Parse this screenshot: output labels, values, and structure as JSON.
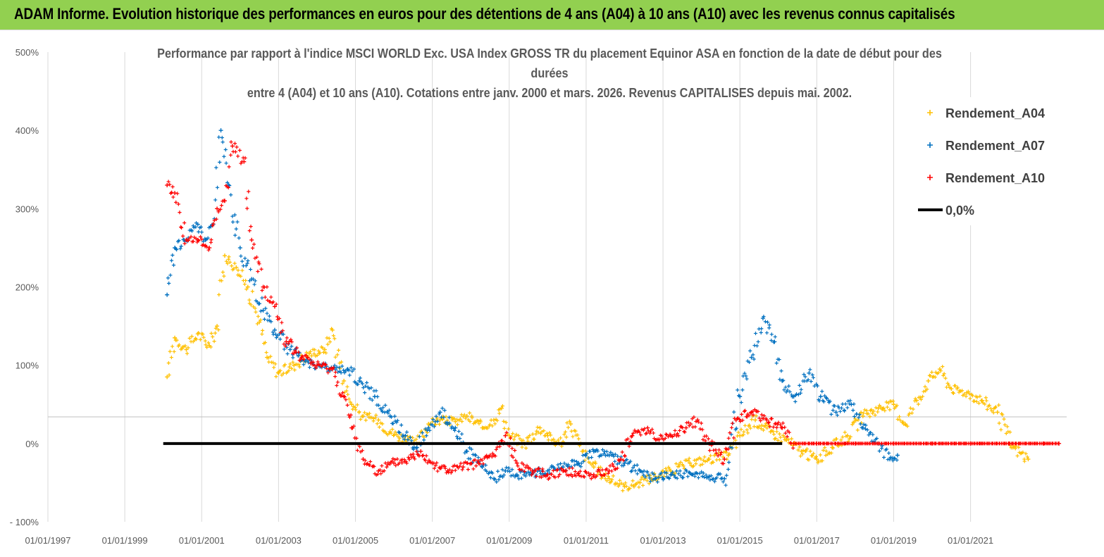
{
  "banner": {
    "text": "ADAM Informe. Evolution historique des performances en euros pour des détentions de 4 ans (A04) à 10 ans (A10) avec les revenus connus capitalisés",
    "color": "#92d050"
  },
  "chart_data": {
    "type": "scatter",
    "title_lines": [
      "Performance par rapport à l'indice MSCI WORLD Exc. USA Index GROSS TR  du placement Equinor ASA en fonction de la date de début pour des",
      "durées",
      "entre 4 (A04) et 10 ans (A10). Cotations entre janv. 2000 et mars. 2026. Revenus CAPITALISES depuis mai. 2002."
    ],
    "xlabel": "",
    "ylabel": "",
    "x_ticks": [
      "01/01/1997",
      "01/01/1999",
      "01/01/2001",
      "01/01/2003",
      "01/01/2005",
      "01/01/2007",
      "01/01/2009",
      "01/01/2011",
      "01/01/2013",
      "01/01/2015",
      "01/01/2017",
      "01/01/2019",
      "01/01/2021"
    ],
    "xlim": [
      1997.0,
      2023.5
    ],
    "y_ticks": [
      "500%",
      "400%",
      "300%",
      "200%",
      "100%",
      "0%",
      "- 100%"
    ],
    "y_tick_values": [
      500,
      400,
      300,
      200,
      100,
      0,
      -100
    ],
    "ylim": [
      -100,
      500
    ],
    "legend_position": "top-right",
    "series": [
      {
        "name": "Rendement_A04",
        "color": "#ffc000",
        "marker": "+",
        "points": [
          [
            2000.1,
            85
          ],
          [
            2000.3,
            135
          ],
          [
            2000.6,
            120
          ],
          [
            2000.9,
            140
          ],
          [
            2001.2,
            125
          ],
          [
            2001.4,
            150
          ],
          [
            2001.6,
            240
          ],
          [
            2001.9,
            225
          ],
          [
            2002.2,
            200
          ],
          [
            2002.5,
            155
          ],
          [
            2002.7,
            110
          ],
          [
            2003.0,
            90
          ],
          [
            2003.4,
            100
          ],
          [
            2003.8,
            115
          ],
          [
            2004.2,
            120
          ],
          [
            2004.4,
            145
          ],
          [
            2004.7,
            80
          ],
          [
            2004.9,
            50
          ],
          [
            2005.2,
            35
          ],
          [
            2005.6,
            30
          ],
          [
            2005.9,
            15
          ],
          [
            2006.3,
            5
          ],
          [
            2006.6,
            0
          ],
          [
            2006.9,
            25
          ],
          [
            2007.2,
            30
          ],
          [
            2007.6,
            28
          ],
          [
            2007.9,
            35
          ],
          [
            2008.3,
            20
          ],
          [
            2008.6,
            30
          ],
          [
            2008.8,
            45
          ],
          [
            2009.0,
            10
          ],
          [
            2009.4,
            0
          ],
          [
            2009.8,
            20
          ],
          [
            2010.0,
            10
          ],
          [
            2010.3,
            0
          ],
          [
            2010.6,
            25
          ],
          [
            2010.9,
            -10
          ],
          [
            2011.2,
            -30
          ],
          [
            2011.6,
            -45
          ],
          [
            2012.0,
            -55
          ],
          [
            2012.4,
            -50
          ],
          [
            2012.8,
            -42
          ],
          [
            2013.2,
            -35
          ],
          [
            2013.7,
            -25
          ],
          [
            2014.2,
            -20
          ],
          [
            2014.7,
            -15
          ],
          [
            2015.0,
            10
          ],
          [
            2015.4,
            30
          ],
          [
            2015.8,
            15
          ],
          [
            2016.2,
            5
          ],
          [
            2016.6,
            -10
          ],
          [
            2017.0,
            -20
          ],
          [
            2017.4,
            -5
          ],
          [
            2017.8,
            10
          ],
          [
            2018.2,
            35
          ],
          [
            2018.6,
            45
          ],
          [
            2019.0,
            50
          ],
          [
            2019.3,
            25
          ],
          [
            2019.6,
            55
          ],
          [
            2019.9,
            80
          ],
          [
            2020.2,
            95
          ],
          [
            2020.5,
            70
          ],
          [
            2020.9,
            65
          ],
          [
            2021.3,
            55
          ],
          [
            2021.7,
            40
          ],
          [
            2022.1,
            -5
          ],
          [
            2022.5,
            -20
          ]
        ]
      },
      {
        "name": "Rendement_A07",
        "color": "#0070c0",
        "marker": "+",
        "points": [
          [
            2000.1,
            190
          ],
          [
            2000.3,
            250
          ],
          [
            2000.6,
            260
          ],
          [
            2000.9,
            280
          ],
          [
            2001.1,
            260
          ],
          [
            2001.3,
            280
          ],
          [
            2001.5,
            400
          ],
          [
            2001.7,
            330
          ],
          [
            2002.0,
            250
          ],
          [
            2002.3,
            210
          ],
          [
            2002.6,
            170
          ],
          [
            2002.9,
            145
          ],
          [
            2003.3,
            120
          ],
          [
            2003.7,
            105
          ],
          [
            2004.0,
            100
          ],
          [
            2004.4,
            95
          ],
          [
            2004.8,
            95
          ],
          [
            2005.1,
            80
          ],
          [
            2005.5,
            60
          ],
          [
            2005.9,
            35
          ],
          [
            2006.3,
            10
          ],
          [
            2006.6,
            -5
          ],
          [
            2006.9,
            20
          ],
          [
            2007.2,
            40
          ],
          [
            2007.6,
            20
          ],
          [
            2007.9,
            -10
          ],
          [
            2008.3,
            -30
          ],
          [
            2008.6,
            -45
          ],
          [
            2008.9,
            -35
          ],
          [
            2009.2,
            -40
          ],
          [
            2009.6,
            -38
          ],
          [
            2010.0,
            -35
          ],
          [
            2010.4,
            -30
          ],
          [
            2010.8,
            -25
          ],
          [
            2011.2,
            -10
          ],
          [
            2011.6,
            -15
          ],
          [
            2012.0,
            -25
          ],
          [
            2012.4,
            -35
          ],
          [
            2012.8,
            -45
          ],
          [
            2013.2,
            -40
          ],
          [
            2013.7,
            -38
          ],
          [
            2014.2,
            -42
          ],
          [
            2014.6,
            -45
          ],
          [
            2015.0,
            60
          ],
          [
            2015.3,
            110
          ],
          [
            2015.6,
            160
          ],
          [
            2015.9,
            130
          ],
          [
            2016.1,
            80
          ],
          [
            2016.4,
            60
          ],
          [
            2016.8,
            90
          ],
          [
            2017.1,
            60
          ],
          [
            2017.5,
            40
          ],
          [
            2017.9,
            50
          ],
          [
            2018.2,
            20
          ],
          [
            2018.6,
            0
          ],
          [
            2018.9,
            -20
          ],
          [
            2019.1,
            -15
          ]
        ]
      },
      {
        "name": "Rendement_A10",
        "color": "#ff0000",
        "marker": "+",
        "points": [
          [
            2000.1,
            330
          ],
          [
            2000.3,
            320
          ],
          [
            2000.6,
            260
          ],
          [
            2000.9,
            260
          ],
          [
            2001.2,
            250
          ],
          [
            2001.4,
            300
          ],
          [
            2001.6,
            310
          ],
          [
            2001.8,
            380
          ],
          [
            2002.1,
            360
          ],
          [
            2002.3,
            260
          ],
          [
            2002.6,
            200
          ],
          [
            2002.9,
            175
          ],
          [
            2003.2,
            130
          ],
          [
            2003.6,
            110
          ],
          [
            2004.0,
            100
          ],
          [
            2004.4,
            95
          ],
          [
            2004.7,
            60
          ],
          [
            2004.9,
            20
          ],
          [
            2005.2,
            -20
          ],
          [
            2005.6,
            -35
          ],
          [
            2006.0,
            -25
          ],
          [
            2006.4,
            -20
          ],
          [
            2006.7,
            -10
          ],
          [
            2007.0,
            -25
          ],
          [
            2007.4,
            -35
          ],
          [
            2007.8,
            -30
          ],
          [
            2008.2,
            -25
          ],
          [
            2008.6,
            -15
          ],
          [
            2008.9,
            10
          ],
          [
            2009.2,
            -25
          ],
          [
            2009.6,
            -35
          ],
          [
            2010.0,
            -40
          ],
          [
            2010.4,
            -35
          ],
          [
            2010.8,
            -38
          ],
          [
            2011.2,
            -40
          ],
          [
            2011.6,
            -35
          ],
          [
            2011.9,
            -20
          ],
          [
            2012.2,
            10
          ],
          [
            2012.6,
            20
          ],
          [
            2012.9,
            5
          ],
          [
            2013.2,
            10
          ],
          [
            2013.6,
            20
          ],
          [
            2013.9,
            30
          ],
          [
            2014.2,
            0
          ],
          [
            2014.6,
            -20
          ],
          [
            2014.9,
            30
          ],
          [
            2015.3,
            40
          ],
          [
            2015.7,
            30
          ],
          [
            2016.1,
            20
          ],
          [
            2016.4,
            0
          ],
          [
            2017.0,
            0
          ],
          [
            2018.0,
            0
          ],
          [
            2019.0,
            0
          ],
          [
            2020.0,
            0
          ],
          [
            2021.0,
            0
          ],
          [
            2022.0,
            0
          ],
          [
            2022.9,
            0
          ],
          [
            2023.3,
            0
          ]
        ]
      },
      {
        "name": "0,0%",
        "color": "#000000",
        "style": "line",
        "points": [
          [
            2000.0,
            0
          ],
          [
            2016.1,
            0
          ]
        ]
      }
    ]
  }
}
